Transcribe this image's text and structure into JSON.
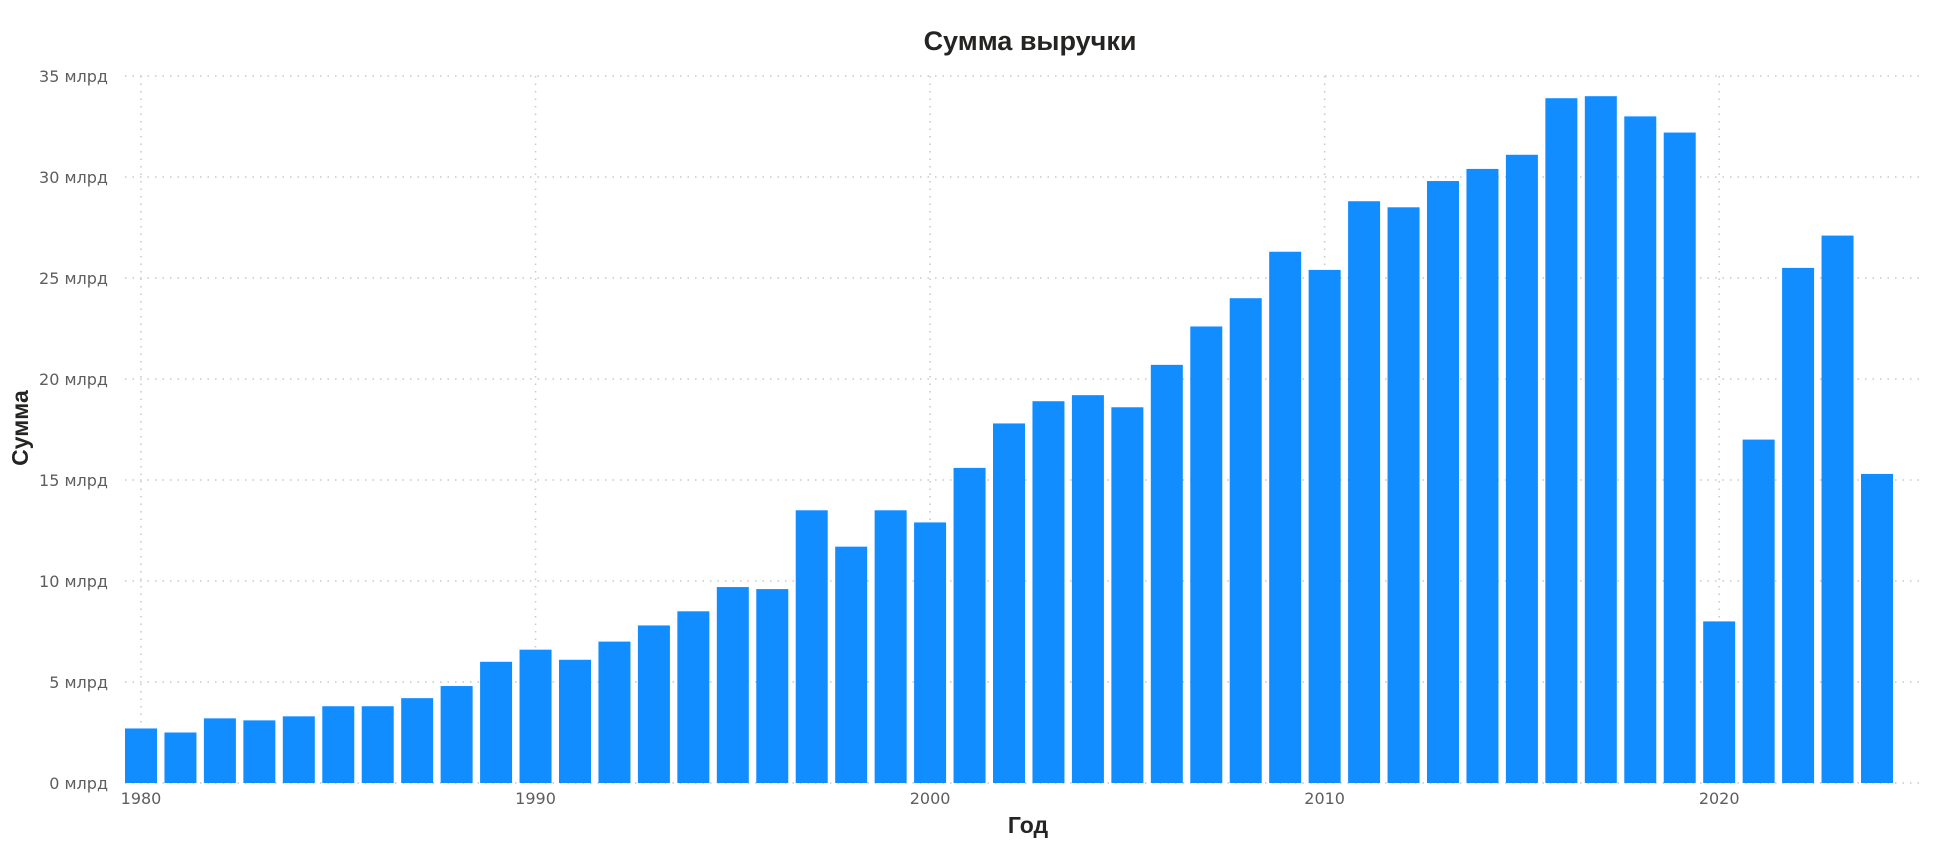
{
  "chart_data": {
    "type": "bar",
    "title": "Сумма выручки",
    "xlabel": "Год",
    "ylabel": "Сумма",
    "x_ticks": [
      "1980",
      "1990",
      "2000",
      "2010",
      "2020"
    ],
    "y_ticks": [
      "0 млрд",
      "5 млрд",
      "10 млрд",
      "15 млрд",
      "20 млрд",
      "25 млрд",
      "30 млрд",
      "35 млрд"
    ],
    "ylim": [
      0,
      35
    ],
    "y_unit": "млрд",
    "grid": true,
    "color": "#118dff",
    "categories": [
      1980,
      1981,
      1982,
      1983,
      1984,
      1985,
      1986,
      1987,
      1988,
      1989,
      1990,
      1991,
      1992,
      1993,
      1994,
      1995,
      1996,
      1997,
      1998,
      1999,
      2000,
      2001,
      2002,
      2003,
      2004,
      2005,
      2006,
      2007,
      2008,
      2009,
      2010,
      2011,
      2012,
      2013,
      2014,
      2015,
      2016,
      2017,
      2018,
      2019,
      2020,
      2021,
      2022,
      2023,
      2024
    ],
    "values": [
      2.7,
      2.5,
      3.2,
      3.1,
      3.3,
      3.8,
      3.8,
      4.2,
      4.8,
      6.0,
      6.6,
      6.1,
      7.0,
      7.8,
      8.5,
      9.7,
      9.6,
      13.5,
      11.7,
      13.5,
      12.9,
      15.6,
      17.8,
      18.9,
      19.2,
      18.6,
      20.7,
      22.6,
      24.0,
      26.3,
      25.4,
      28.8,
      28.5,
      29.8,
      30.4,
      31.1,
      33.9,
      34.0,
      33.0,
      32.2,
      8.0,
      17.0,
      25.5,
      27.1,
      15.3
    ]
  }
}
